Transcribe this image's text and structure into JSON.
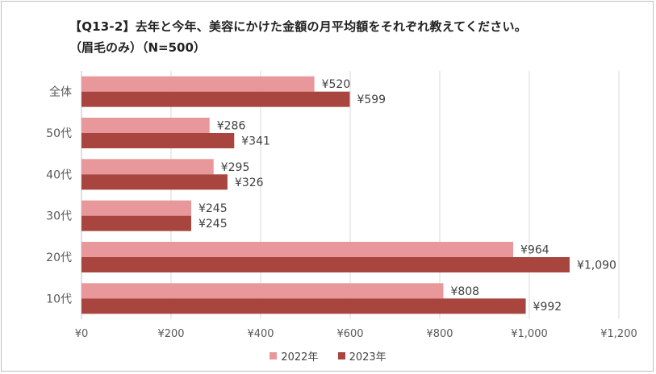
{
  "chart_data": {
    "type": "bar",
    "orientation": "horizontal",
    "title": "【Q13-2】去年と今年、美容にかけた金額の月平均額をそれぞれ教えてください。",
    "subtitle": "（眉毛のみ）（N=500）",
    "categories": [
      "全体",
      "50代",
      "40代",
      "30代",
      "20代",
      "10代"
    ],
    "series": [
      {
        "name": "2022年",
        "color": "#e8979b",
        "values": [
          520,
          286,
          295,
          245,
          964,
          808
        ],
        "labels": [
          "¥520",
          "¥286",
          "¥295",
          "¥245",
          "¥964",
          "¥808"
        ]
      },
      {
        "name": "2023年",
        "color": "#a8453f",
        "values": [
          599,
          341,
          326,
          245,
          1090,
          992
        ],
        "labels": [
          "¥599",
          "¥341",
          "¥326",
          "¥245",
          "¥1,090",
          "¥992"
        ]
      }
    ],
    "xlim": [
      0,
      1200
    ],
    "xticks": [
      0,
      200,
      400,
      600,
      800,
      1000,
      1200
    ],
    "xtick_labels": [
      "¥0",
      "¥200",
      "¥400",
      "¥600",
      "¥800",
      "¥1,000",
      "¥1,200"
    ],
    "grid": true,
    "legend_position": "bottom-center"
  }
}
